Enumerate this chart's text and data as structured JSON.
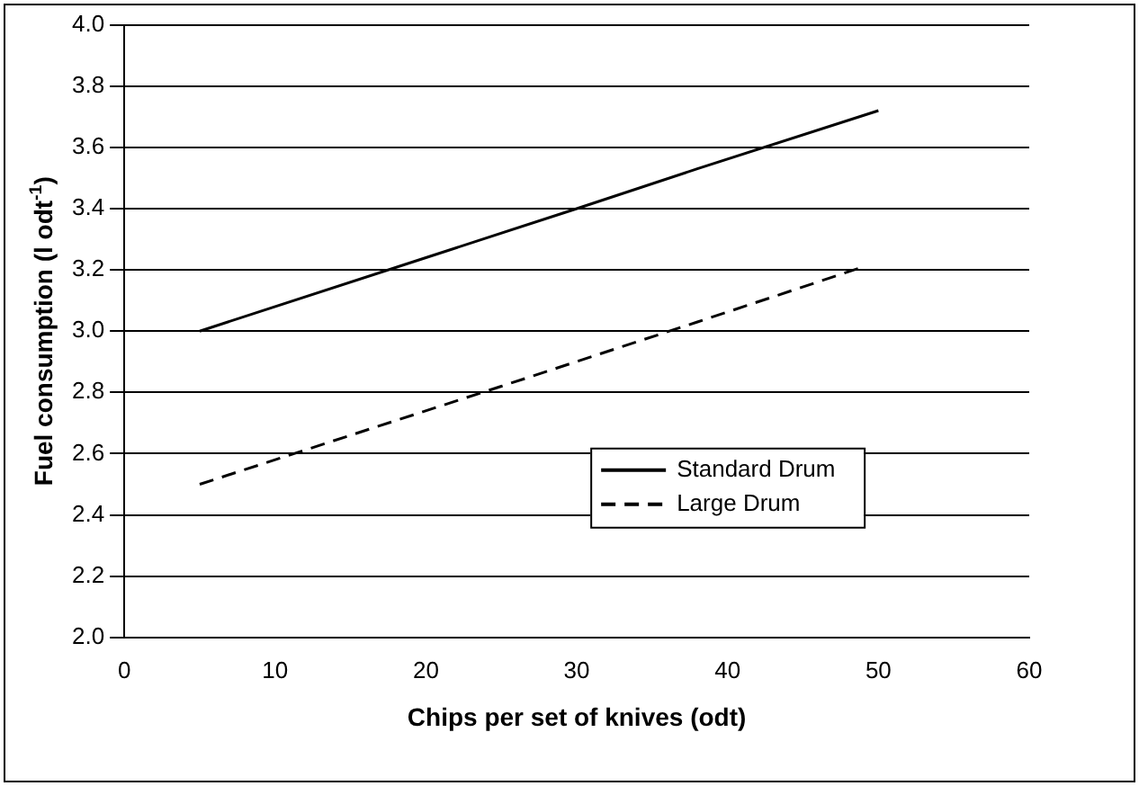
{
  "chart_data": {
    "type": "line",
    "xlabel": "Chips per set of knives (odt)",
    "ylabel": "Fuel consumption (l odt$^{-1}$)",
    "xlim": [
      0,
      60
    ],
    "xticks": [
      0,
      10,
      20,
      30,
      40,
      50,
      60
    ],
    "ylim": [
      2.0,
      4.0
    ],
    "yticks": [
      {
        "value": 2.0,
        "label": "2.0"
      },
      {
        "value": 2.2,
        "label": "2.2"
      },
      {
        "value": 2.4,
        "label": "2.4"
      },
      {
        "value": 2.6,
        "label": "2.6"
      },
      {
        "value": 2.8,
        "label": "2.8"
      },
      {
        "value": 3.0,
        "label": "3.0"
      },
      {
        "value": 3.2,
        "label": "3.2"
      },
      {
        "value": 3.4,
        "label": "3.4"
      },
      {
        "value": 3.6,
        "label": "3.6"
      },
      {
        "value": 3.8,
        "label": "3.8"
      },
      {
        "value": 4.0,
        "label": "4.0"
      }
    ],
    "grid": "y",
    "legend": "right",
    "marker": "none",
    "series": [
      {
        "name": "Standard Drum",
        "color": "#000000",
        "line_style": "solid",
        "x": [
          5,
          20,
          30,
          38,
          50
        ],
        "values": [
          3.0,
          3.24,
          3.4,
          3.53,
          3.72
        ]
      },
      {
        "name": "Large Drum",
        "color": "#000000",
        "line_style": "dashed",
        "x": [
          5,
          15,
          25,
          38,
          49
        ],
        "values": [
          2.5,
          2.66,
          2.82,
          3.03,
          3.21
        ]
      }
    ]
  }
}
